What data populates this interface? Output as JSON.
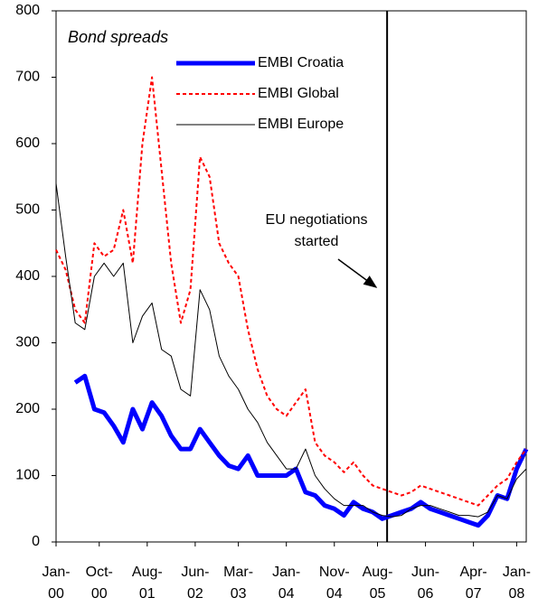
{
  "chart_data": {
    "type": "line",
    "annotations": [
      "Bond spreads",
      "EU negotiations started"
    ],
    "vline": "2005-10",
    "x": [
      "2000-01",
      "2000-03",
      "2000-05",
      "2000-07",
      "2000-09",
      "2000-11",
      "2001-01",
      "2001-03",
      "2001-05",
      "2001-07",
      "2001-09",
      "2001-11",
      "2002-01",
      "2002-03",
      "2002-05",
      "2002-07",
      "2002-09",
      "2002-11",
      "2003-01",
      "2003-03",
      "2003-05",
      "2003-07",
      "2003-09",
      "2003-11",
      "2004-01",
      "2004-03",
      "2004-05",
      "2004-07",
      "2004-09",
      "2004-11",
      "2005-01",
      "2005-03",
      "2005-05",
      "2005-07",
      "2005-09",
      "2005-11",
      "2006-01",
      "2006-03",
      "2006-05",
      "2006-07",
      "2006-09",
      "2006-11",
      "2007-01",
      "2007-03",
      "2007-05",
      "2007-07",
      "2007-09",
      "2007-11",
      "2008-01",
      "2008-03"
    ],
    "series": [
      {
        "name": "EMBI Croatia",
        "color": "#0000ff",
        "style": "thick",
        "values": [
          null,
          null,
          240,
          250,
          200,
          195,
          175,
          150,
          200,
          170,
          210,
          190,
          160,
          140,
          140,
          170,
          150,
          130,
          115,
          110,
          130,
          100,
          100,
          100,
          100,
          110,
          75,
          70,
          55,
          50,
          40,
          60,
          50,
          45,
          35,
          40,
          45,
          50,
          60,
          50,
          45,
          40,
          35,
          30,
          25,
          40,
          70,
          65,
          110,
          140
        ]
      },
      {
        "name": "EMBI Global",
        "color": "#ff0000",
        "style": "dashed",
        "values": [
          440,
          410,
          350,
          330,
          450,
          430,
          440,
          500,
          420,
          600,
          700,
          560,
          420,
          330,
          380,
          580,
          550,
          450,
          420,
          400,
          320,
          260,
          220,
          200,
          190,
          210,
          230,
          150,
          130,
          120,
          105,
          120,
          100,
          85,
          80,
          75,
          70,
          75,
          85,
          80,
          75,
          70,
          65,
          60,
          55,
          70,
          85,
          95,
          120,
          140
        ]
      },
      {
        "name": "EMBI Europe",
        "color": "#000000",
        "style": "thin",
        "values": [
          540,
          430,
          330,
          320,
          400,
          420,
          400,
          420,
          300,
          340,
          360,
          290,
          280,
          230,
          220,
          380,
          350,
          280,
          250,
          230,
          200,
          180,
          150,
          130,
          110,
          110,
          140,
          100,
          80,
          65,
          55,
          55,
          55,
          45,
          40,
          38,
          40,
          50,
          55,
          55,
          50,
          45,
          40,
          40,
          38,
          45,
          70,
          65,
          95,
          110
        ]
      }
    ],
    "xlim": [
      "2000-01",
      "2008-03"
    ],
    "xticks": [
      {
        "value": "2000-01",
        "label": "Jan-00"
      },
      {
        "value": "2000-10",
        "label": "Oct-00"
      },
      {
        "value": "2001-08",
        "label": "Aug-01"
      },
      {
        "value": "2002-06",
        "label": "Jun-02"
      },
      {
        "value": "2003-03",
        "label": "Mar-03"
      },
      {
        "value": "2004-01",
        "label": "Jan-04"
      },
      {
        "value": "2004-11",
        "label": "Nov-04"
      },
      {
        "value": "2005-08",
        "label": "Aug-05"
      },
      {
        "value": "2006-06",
        "label": "Jun-06"
      },
      {
        "value": "2007-04",
        "label": "Apr-07"
      },
      {
        "value": "2008-01",
        "label": "Jan-08"
      }
    ],
    "ylim": [
      0,
      800
    ],
    "yticks": [
      0,
      100,
      200,
      300,
      400,
      500,
      600,
      700,
      800
    ]
  }
}
